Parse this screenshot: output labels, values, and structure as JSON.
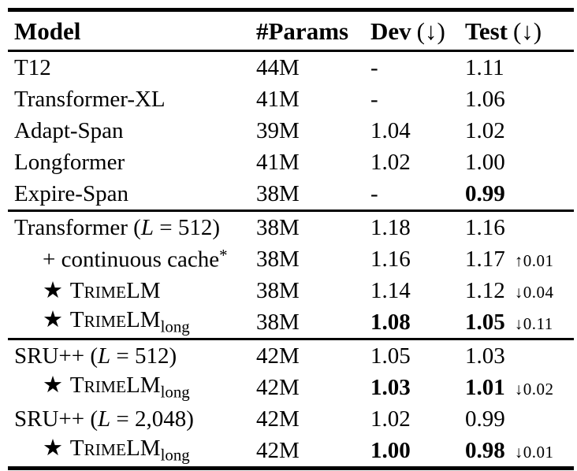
{
  "colors": {
    "text": "#000000",
    "background": "#ffffff",
    "rule": "#000000"
  },
  "header": {
    "columns": [
      {
        "label": "Model",
        "suffix": ""
      },
      {
        "label": "#Params",
        "suffix": ""
      },
      {
        "label": "Dev",
        "suffix": "(↓)"
      },
      {
        "label": "Test",
        "suffix": "(↓)"
      }
    ]
  },
  "chart_data": {
    "type": "table",
    "columns": [
      "Model",
      "#Params",
      "Dev (↓)",
      "Test (↓)"
    ],
    "sections": [
      {
        "rows": [
          {
            "model": [
              {
                "t": "T12"
              }
            ],
            "params": "44M",
            "dev": "-",
            "test": "1.11"
          },
          {
            "model": [
              {
                "t": "Transformer-XL"
              }
            ],
            "params": "41M",
            "dev": "-",
            "test": "1.06"
          },
          {
            "model": [
              {
                "t": "Adapt-Span"
              }
            ],
            "params": "39M",
            "dev": "1.04",
            "test": "1.02"
          },
          {
            "model": [
              {
                "t": "Longformer"
              }
            ],
            "params": "41M",
            "dev": "1.02",
            "test": "1.00"
          },
          {
            "model": [
              {
                "t": "Expire-Span"
              }
            ],
            "params": "38M",
            "dev": "-",
            "test": "0.99",
            "test_bold": true
          }
        ]
      },
      {
        "rows": [
          {
            "model": [
              {
                "t": "Transformer ("
              },
              {
                "t": "L",
                "s": "italic"
              },
              {
                "t": " = 512)"
              }
            ],
            "params": "38M",
            "dev": "1.18",
            "test": "1.16"
          },
          {
            "indent": true,
            "model": [
              {
                "t": "+ continuous cache"
              },
              {
                "t": "*",
                "s": "sup"
              }
            ],
            "params": "38M",
            "dev": "1.16",
            "test": "1.17",
            "delta": "↑0.01"
          },
          {
            "indent": true,
            "model": [
              {
                "t": "★",
                "s": "star"
              },
              {
                "t": " T"
              },
              {
                "t": "RIME",
                "s": "sc"
              },
              {
                "t": "LM"
              }
            ],
            "params": "38M",
            "dev": "1.14",
            "test": "1.12",
            "delta": "↓0.04"
          },
          {
            "indent": true,
            "model": [
              {
                "t": "★",
                "s": "star"
              },
              {
                "t": " T"
              },
              {
                "t": "RIME",
                "s": "sc"
              },
              {
                "t": "LM"
              },
              {
                "t": "long",
                "s": "sub"
              }
            ],
            "params": "38M",
            "dev": "1.08",
            "dev_bold": true,
            "test": "1.05",
            "test_bold": true,
            "delta": "↓0.11"
          }
        ]
      },
      {
        "rows": [
          {
            "model": [
              {
                "t": "SRU++ ("
              },
              {
                "t": "L",
                "s": "italic"
              },
              {
                "t": " = 512)"
              }
            ],
            "params": "42M",
            "dev": "1.05",
            "test": "1.03"
          },
          {
            "indent": true,
            "model": [
              {
                "t": "★",
                "s": "star"
              },
              {
                "t": " T"
              },
              {
                "t": "RIME",
                "s": "sc"
              },
              {
                "t": "LM"
              },
              {
                "t": "long",
                "s": "sub"
              }
            ],
            "params": "42M",
            "dev": "1.03",
            "dev_bold": true,
            "test": "1.01",
            "test_bold": true,
            "delta": "↓0.02"
          },
          {
            "model": [
              {
                "t": "SRU++ ("
              },
              {
                "t": "L",
                "s": "italic"
              },
              {
                "t": " = 2,048)"
              }
            ],
            "params": "42M",
            "dev": "1.02",
            "test": "0.99"
          },
          {
            "indent": true,
            "model": [
              {
                "t": "★",
                "s": "star"
              },
              {
                "t": " T"
              },
              {
                "t": "RIME",
                "s": "sc"
              },
              {
                "t": "LM"
              },
              {
                "t": "long",
                "s": "sub"
              }
            ],
            "params": "42M",
            "dev": "1.00",
            "dev_bold": true,
            "test": "0.98",
            "test_bold": true,
            "delta": "↓0.01"
          }
        ]
      }
    ]
  }
}
